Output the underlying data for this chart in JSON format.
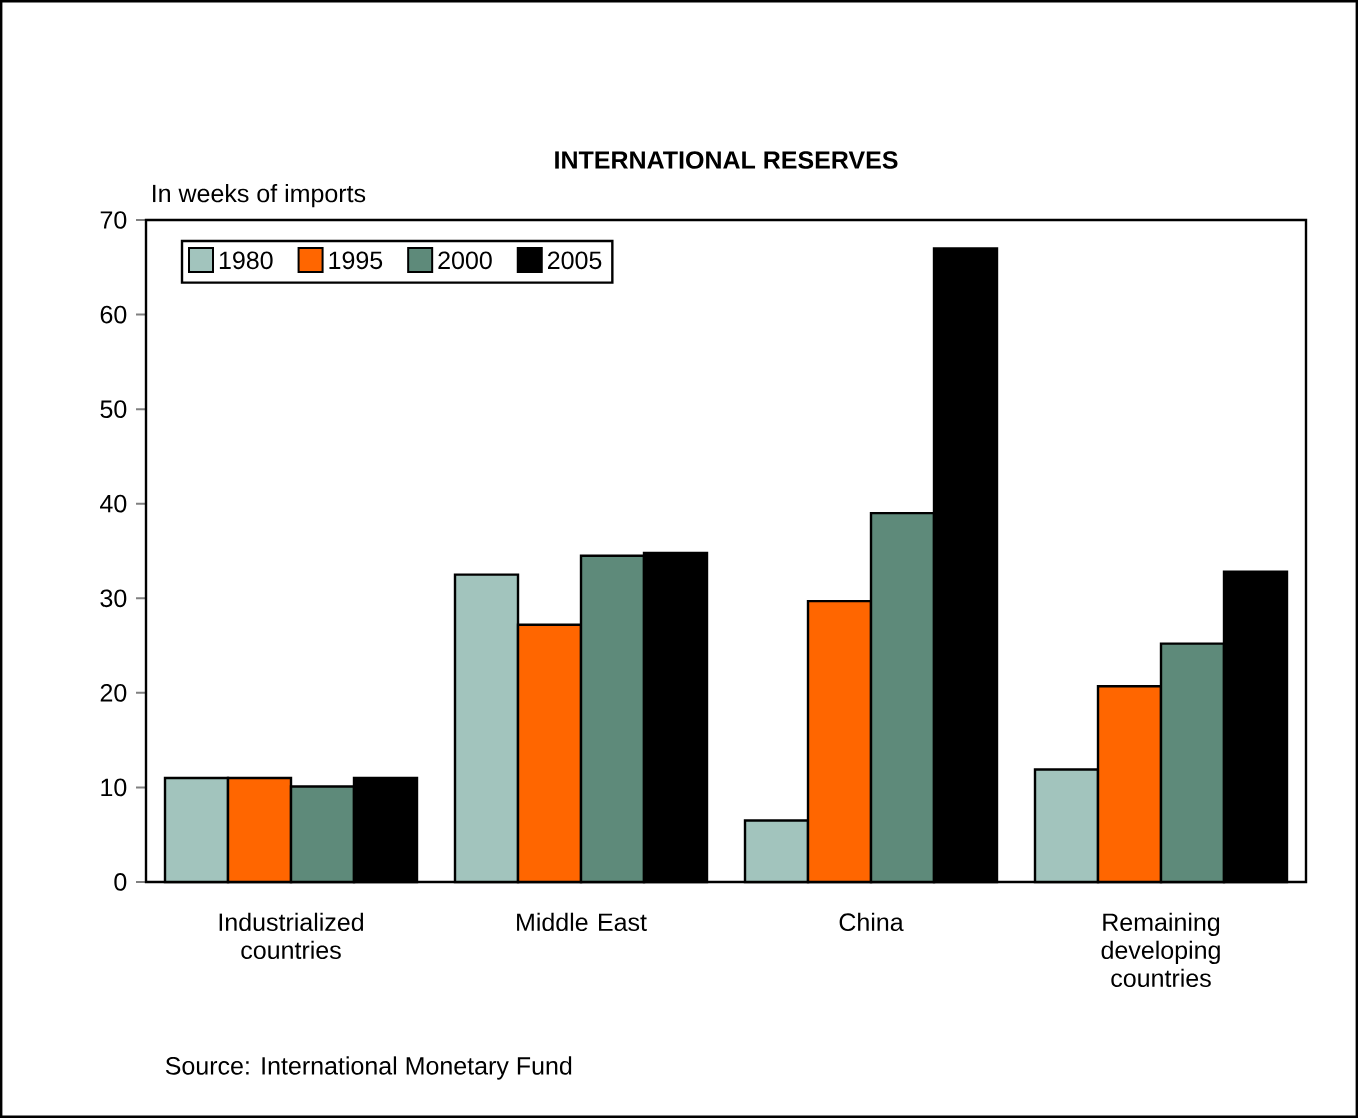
{
  "chart_data": {
    "type": "bar",
    "title": "INTERNATIONAL RESERVES",
    "ylabel": "In weeks of imports",
    "categories": [
      "Industrialized countries",
      "Middle East",
      "China",
      "Remaining developing countries"
    ],
    "series": [
      {
        "name": "1980",
        "color": "#a2c4bd",
        "values": [
          11,
          32.5,
          6.5,
          11.9
        ]
      },
      {
        "name": "1995",
        "color": "#ff6600",
        "values": [
          11,
          27.2,
          29.7,
          20.7
        ]
      },
      {
        "name": "2000",
        "color": "#5e8a7a",
        "values": [
          10.1,
          34.5,
          39,
          25.2
        ]
      },
      {
        "name": "2005",
        "color": "#000000",
        "values": [
          11,
          34.8,
          67,
          32.8
        ]
      }
    ],
    "ylim": [
      0,
      70
    ],
    "yticks": [
      0,
      10,
      20,
      30,
      40,
      50,
      60,
      70
    ],
    "grid": false,
    "legend": "top left",
    "annotations": [
      "Source: International Monetary Fund"
    ]
  }
}
